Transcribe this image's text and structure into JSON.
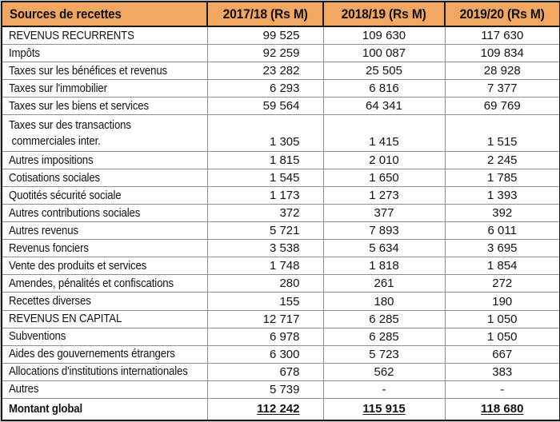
{
  "colors": {
    "header_bg": "#F1A661",
    "grid_line": "#8F8F8F",
    "table_border": "#1A1A1A",
    "frame_edge": "#C6D2D9",
    "text": "#121212"
  },
  "table": {
    "header": {
      "sources": "Sources de recettes",
      "y1": "2017/18 (Rs M)",
      "y2": "2018/19 (Rs M)",
      "y3": "2019/20 (Rs M)"
    },
    "rows": [
      {
        "label": "REVENUS RECURRENTS",
        "v1": "99 525",
        "v2": "109 630",
        "v3": "117 630"
      },
      {
        "label": "Impôts",
        "v1": "92 259",
        "v2": "100 087",
        "v3": "109 834"
      },
      {
        "label": "Taxes sur les bénéfices et revenus",
        "v1": "23 282",
        "v2": "25 505",
        "v3": "28 928"
      },
      {
        "label": "Taxes sur l'immobilier",
        "v1": "6 293",
        "v2": "6 816",
        "v3": "7 377"
      },
      {
        "label": "Taxes sur les biens et services",
        "v1": "59 564",
        "v2": "64 341",
        "v3": "69 769"
      },
      {
        "label": "Taxes sur des transactions",
        "label2": "commerciales inter.",
        "two_line": true,
        "v1": "1 305",
        "v2": "1 415",
        "v3": "1 515"
      },
      {
        "label": "Autres impositions",
        "v1": "1 815",
        "v2": "2 010",
        "v3": "2 245"
      },
      {
        "label": "Cotisations sociales",
        "v1": "1 545",
        "v2": "1 650",
        "v3": "1 785"
      },
      {
        "label": "Quotités sécurité sociale",
        "v1": "1 173",
        "v2": "1 273",
        "v3": "1 393"
      },
      {
        "label": "Autres contributions sociales",
        "v1": "372",
        "v2": "377",
        "v3": "392"
      },
      {
        "label": "Autres revenus",
        "v1": "5 721",
        "v2": "7 893",
        "v3": "6 011"
      },
      {
        "label": "Revenus fonciers",
        "v1": "3 538",
        "v2": "5 634",
        "v3": "3 695"
      },
      {
        "label": "Vente des produits et services",
        "v1": "1 748",
        "v2": "1 818",
        "v3": "1 854"
      },
      {
        "label": "Amendes, pénalités et confiscations",
        "v1": "280",
        "v2": "261",
        "v3": "272"
      },
      {
        "label": "Recettes diverses",
        "v1": "155",
        "v2": "180",
        "v3": "190"
      },
      {
        "label": "REVENUS EN CAPITAL",
        "v1": "12 717",
        "v2": "6 285",
        "v3": "1 050"
      },
      {
        "label": "Subventions",
        "v1": "6 978",
        "v2": "6 285",
        "v3": "1 050"
      },
      {
        "label": "Aides des gouvernements étrangers",
        "v1": "6 300",
        "v2": "5 723",
        "v3": "667"
      },
      {
        "label": "Allocations d'institutions internationales",
        "v1": "678",
        "v2": "562",
        "v3": "383"
      },
      {
        "label": "Autres",
        "v1": "5 739",
        "v2": "-",
        "v3": "-"
      },
      {
        "label": "Montant global",
        "total": true,
        "v1": "112 242",
        "v2": "115 915",
        "v3": "118 680"
      }
    ]
  },
  "chart_data": {
    "type": "table",
    "title": "Sources de recettes",
    "columns": [
      "Sources de recettes",
      "2017/18 (Rs M)",
      "2018/19 (Rs M)",
      "2019/20 (Rs M)"
    ],
    "rows": [
      [
        "REVENUS RECURRENTS",
        99525,
        109630,
        117630
      ],
      [
        "Impôts",
        92259,
        100087,
        109834
      ],
      [
        "Taxes sur les bénéfices et revenus",
        23282,
        25505,
        28928
      ],
      [
        "Taxes sur l'immobilier",
        6293,
        6816,
        7377
      ],
      [
        "Taxes sur les biens et services",
        59564,
        64341,
        69769
      ],
      [
        "Taxes sur des transactions commerciales inter.",
        1305,
        1415,
        1515
      ],
      [
        "Autres impositions",
        1815,
        2010,
        2245
      ],
      [
        "Cotisations sociales",
        1545,
        1650,
        1785
      ],
      [
        "Quotités sécurité sociale",
        1173,
        1273,
        1393
      ],
      [
        "Autres contributions sociales",
        372,
        377,
        392
      ],
      [
        "Autres revenus",
        5721,
        7893,
        6011
      ],
      [
        "Revenus fonciers",
        3538,
        5634,
        3695
      ],
      [
        "Vente des produits et services",
        1748,
        1818,
        1854
      ],
      [
        "Amendes, pénalités et confiscations",
        280,
        261,
        272
      ],
      [
        "Recettes diverses",
        155,
        180,
        190
      ],
      [
        "REVENUS EN CAPITAL",
        12717,
        6285,
        1050
      ],
      [
        "Subventions",
        6978,
        6285,
        1050
      ],
      [
        "Aides des gouvernements étrangers",
        6300,
        5723,
        667
      ],
      [
        "Allocations d'institutions internationales",
        678,
        562,
        383
      ],
      [
        "Autres",
        5739,
        "-",
        "-"
      ],
      [
        "Montant global",
        112242,
        115915,
        118680
      ]
    ]
  }
}
